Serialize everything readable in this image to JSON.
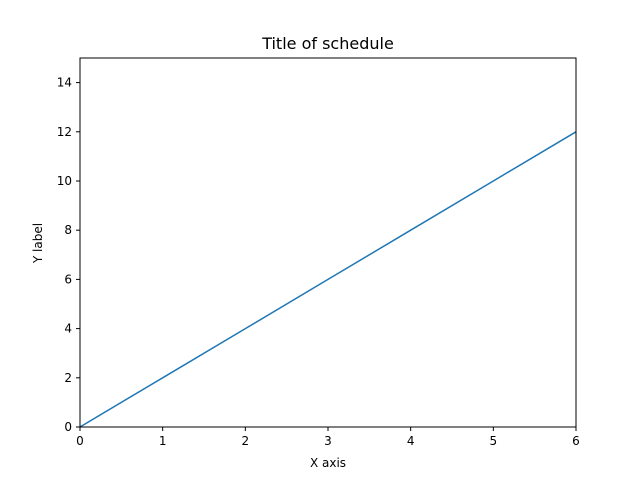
{
  "chart_data": {
    "type": "line",
    "title": "Title of schedule",
    "xlabel": "X axis",
    "ylabel": "Y label",
    "xlim": [
      0,
      6
    ],
    "ylim": [
      0,
      15
    ],
    "xticks": [
      0,
      1,
      2,
      3,
      4,
      5,
      6
    ],
    "yticks": [
      0,
      2,
      4,
      6,
      8,
      10,
      12,
      14
    ],
    "grid": false,
    "legend": "none",
    "series": [
      {
        "x": [
          0,
          1,
          2,
          3,
          4,
          5,
          6
        ],
        "y": [
          0,
          2,
          4,
          6,
          8,
          10,
          12
        ],
        "color": "#1f77b4"
      }
    ]
  }
}
